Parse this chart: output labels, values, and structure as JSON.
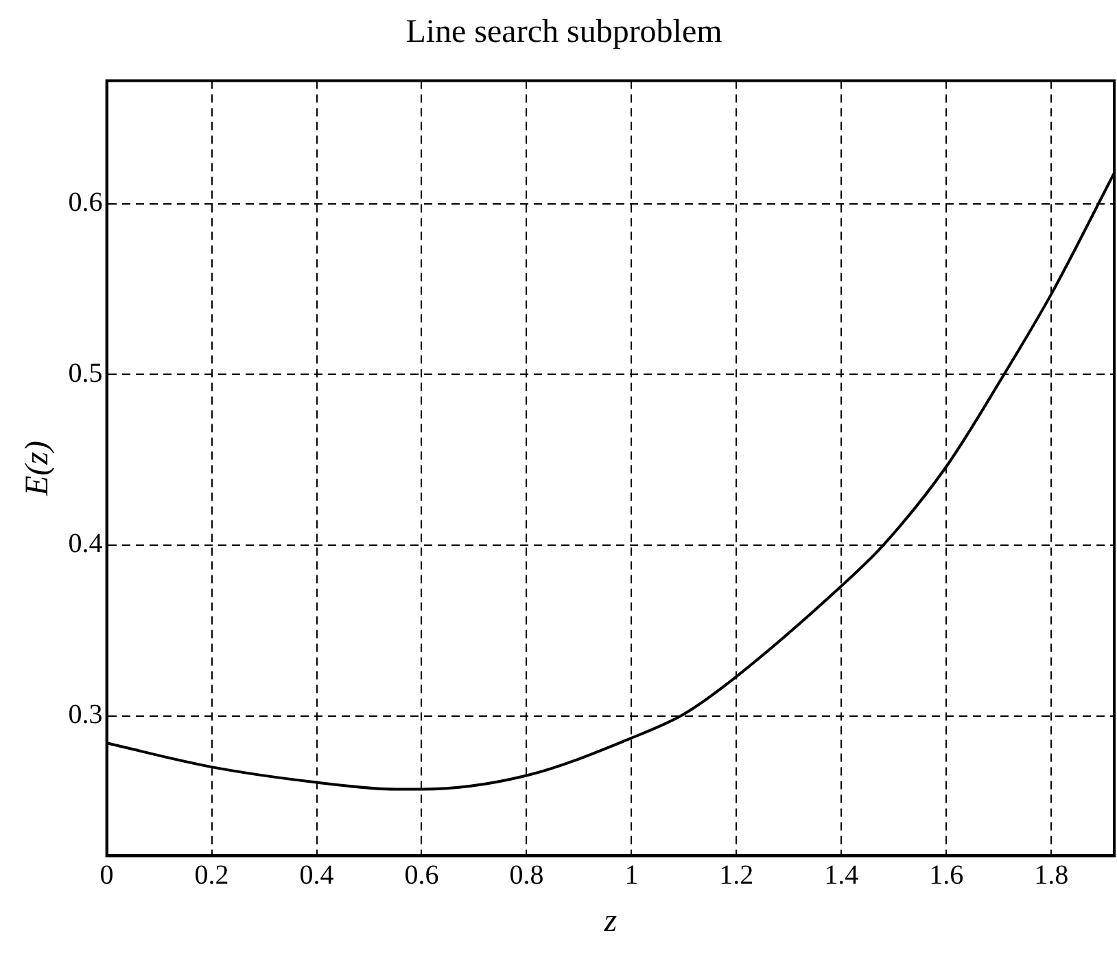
{
  "chart_data": {
    "type": "line",
    "title": "Line search subproblem",
    "xlabel": "z",
    "ylabel": "E(z)",
    "x": [
      0,
      0.2,
      0.4,
      0.55,
      0.6,
      0.8,
      1.0,
      1.1,
      1.2,
      1.4,
      1.48,
      1.6,
      1.71,
      1.8,
      1.92
    ],
    "series": [
      {
        "color": "#000000",
        "values": [
          0.284,
          0.27,
          0.261,
          0.257,
          0.257,
          0.265,
          0.287,
          0.301,
          0.323,
          0.376,
          0.4,
          0.446,
          0.5,
          0.547,
          0.618
        ]
      }
    ],
    "xlim": [
      0,
      1.92
    ],
    "ylim": [
      0.218,
      0.672
    ],
    "xticks": [
      0,
      0.2,
      0.4,
      0.6,
      0.8,
      1,
      1.2,
      1.4,
      1.6,
      1.8
    ],
    "yticks": [
      0.3,
      0.4,
      0.5,
      0.6
    ],
    "grid": true,
    "legend": false,
    "marker": "none",
    "line_style": "solid"
  }
}
